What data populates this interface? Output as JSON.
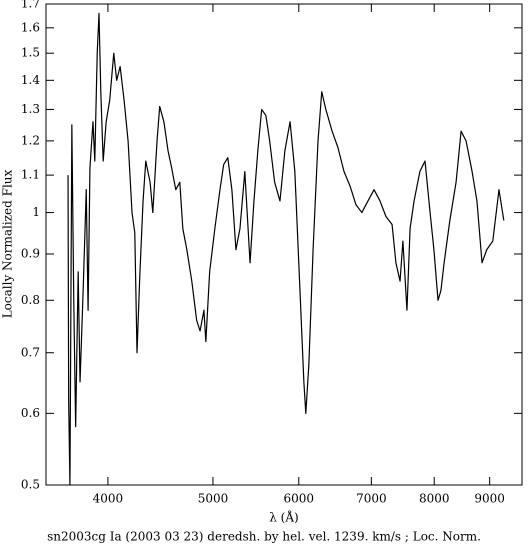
{
  "chart_data": {
    "type": "line",
    "title": "sn2003cg Ia (2003 03 23) deredsh. by hel. vel.  1239. km/s ;  Loc. Norm.",
    "x_label": "λ (Å)",
    "y_label": "Locally Normalized Flux",
    "xlog": true,
    "ylog": true,
    "color": "#000000",
    "xlim": [
      3507,
      9640
    ],
    "ylim": [
      0.5,
      1.7
    ],
    "xticks": [
      4000,
      5000,
      6000,
      7000,
      8000,
      9000
    ],
    "yticks": [
      0.5,
      0.6,
      0.7,
      0.8,
      0.9,
      1,
      1.1,
      1.2,
      1.3,
      1.4,
      1.5,
      1.6,
      1.7
    ],
    "x": [
      3675,
      3680,
      3690,
      3705,
      3720,
      3735,
      3755,
      3770,
      3795,
      3820,
      3835,
      3850,
      3875,
      3890,
      3910,
      3925,
      3940,
      3960,
      3985,
      4015,
      4050,
      4075,
      4105,
      4140,
      4175,
      4210,
      4235,
      4255,
      4280,
      4310,
      4335,
      4375,
      4400,
      4440,
      4465,
      4505,
      4545,
      4580,
      4620,
      4660,
      4690,
      4730,
      4780,
      4830,
      4865,
      4905,
      4925,
      4965,
      5020,
      5075,
      5115,
      5160,
      5205,
      5250,
      5295,
      5350,
      5410,
      5455,
      5500,
      5545,
      5595,
      5640,
      5700,
      5765,
      5825,
      5890,
      5950,
      6015,
      6065,
      6090,
      6130,
      6185,
      6250,
      6300,
      6355,
      6440,
      6520,
      6605,
      6690,
      6775,
      6860,
      6950,
      7040,
      7130,
      7220,
      7315,
      7375,
      7440,
      7485,
      7550,
      7600,
      7665,
      7760,
      7845,
      7930,
      7995,
      8065,
      8115,
      8170,
      8270,
      8380,
      8470,
      8560,
      8670,
      8760,
      8855,
      8945,
      9060,
      9180,
      9275
    ],
    "values": [
      1.1,
      0.62,
      0.5,
      1.25,
      0.8,
      0.58,
      0.86,
      0.65,
      0.82,
      1.06,
      0.78,
      1.12,
      1.26,
      1.14,
      1.5,
      1.66,
      1.36,
      1.14,
      1.26,
      1.33,
      1.5,
      1.4,
      1.45,
      1.33,
      1.2,
      1.0,
      0.95,
      0.7,
      0.85,
      1.03,
      1.14,
      1.08,
      1.0,
      1.2,
      1.31,
      1.26,
      1.17,
      1.12,
      1.06,
      1.08,
      0.96,
      0.91,
      0.84,
      0.76,
      0.74,
      0.78,
      0.72,
      0.86,
      0.96,
      1.06,
      1.13,
      1.15,
      1.06,
      0.91,
      0.96,
      1.11,
      0.88,
      1.03,
      1.17,
      1.3,
      1.28,
      1.2,
      1.08,
      1.03,
      1.17,
      1.26,
      1.11,
      0.82,
      0.65,
      0.6,
      0.68,
      0.91,
      1.2,
      1.36,
      1.3,
      1.23,
      1.18,
      1.11,
      1.07,
      1.02,
      1.0,
      1.03,
      1.06,
      1.03,
      0.99,
      0.97,
      0.88,
      0.84,
      0.93,
      0.78,
      0.96,
      1.03,
      1.11,
      1.14,
      1.0,
      0.91,
      0.8,
      0.82,
      0.88,
      0.98,
      1.08,
      1.23,
      1.2,
      1.11,
      1.03,
      0.88,
      0.91,
      0.93,
      1.06,
      0.98
    ]
  }
}
